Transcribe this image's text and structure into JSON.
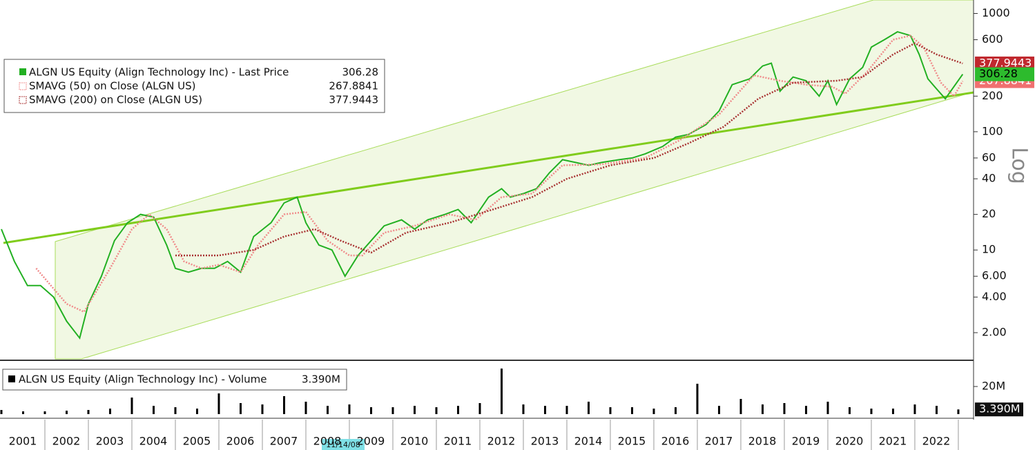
{
  "chart_data": [
    {
      "type": "line",
      "log": true,
      "scale_label": "Log",
      "annotation": "11/14/08",
      "xlim": [
        2001,
        2023.35
      ],
      "xticks": [
        2001,
        2002,
        2003,
        2004,
        2005,
        2006,
        2007,
        2008,
        2009,
        2010,
        2011,
        2012,
        2013,
        2014,
        2015,
        2016,
        2017,
        2018,
        2019,
        2020,
        2021,
        2022
      ],
      "ylim": [
        1.2,
        1300
      ],
      "yticks": [
        1000,
        600,
        200,
        100,
        60,
        40,
        20,
        10,
        {
          "value": 6,
          "label": "6.00"
        },
        {
          "value": 4,
          "label": "4.00"
        },
        {
          "value": 2,
          "label": "2.00"
        }
      ],
      "series": [
        {
          "name": "ALGN US Equity (Align Technology Inc) - Last Price",
          "color": "#22b022",
          "x": [
            2001.0,
            2001.3,
            2001.6,
            2001.9,
            2002.2,
            2002.5,
            2002.8,
            2003.0,
            2003.3,
            2003.6,
            2003.9,
            2004.2,
            2004.5,
            2004.8,
            2005.0,
            2005.3,
            2005.6,
            2005.9,
            2006.2,
            2006.5,
            2006.8,
            2007.2,
            2007.5,
            2007.8,
            2008.0,
            2008.3,
            2008.6,
            2008.9,
            2009.2,
            2009.5,
            2009.8,
            2010.2,
            2010.5,
            2010.8,
            2011.2,
            2011.5,
            2011.8,
            2012.2,
            2012.5,
            2012.7,
            2013.0,
            2013.3,
            2013.6,
            2013.9,
            2014.2,
            2014.5,
            2014.8,
            2015.2,
            2015.5,
            2015.8,
            2016.2,
            2016.5,
            2016.8,
            2017.2,
            2017.5,
            2017.8,
            2018.2,
            2018.5,
            2018.7,
            2018.9,
            2019.2,
            2019.5,
            2019.8,
            2020.0,
            2020.2,
            2020.5,
            2020.8,
            2021.0,
            2021.3,
            2021.6,
            2021.9,
            2022.1,
            2022.3,
            2022.5,
            2022.7,
            2023.1
          ],
          "values": [
            15,
            8,
            5,
            5,
            4,
            2.5,
            1.8,
            3.5,
            6,
            12,
            17,
            20,
            19,
            11,
            7,
            6.5,
            7,
            7,
            8,
            6.5,
            13,
            17,
            25,
            28,
            17,
            11,
            10,
            6,
            9,
            12,
            16,
            18,
            15,
            18,
            20,
            22,
            17,
            28,
            33,
            28,
            30,
            33,
            45,
            58,
            55,
            52,
            55,
            58,
            60,
            65,
            75,
            90,
            95,
            115,
            150,
            250,
            280,
            360,
            380,
            220,
            290,
            270,
            200,
            270,
            170,
            280,
            350,
            520,
            600,
            700,
            650,
            450,
            280,
            230,
            190,
            306.28
          ]
        },
        {
          "name": "SMAVG (50)  on Close (ALGN US)",
          "color": "#f08a8a",
          "x": [
            2001.8,
            2002.5,
            2002.9,
            2003.5,
            2004.0,
            2004.4,
            2004.8,
            2005.2,
            2005.6,
            2006.0,
            2006.5,
            2006.9,
            2007.5,
            2008.0,
            2008.5,
            2009.0,
            2009.3,
            2009.8,
            2010.5,
            2011.3,
            2011.9,
            2012.5,
            2013.2,
            2013.9,
            2014.8,
            2015.8,
            2016.6,
            2017.5,
            2018.3,
            2018.9,
            2019.5,
            2020.1,
            2020.4,
            2020.9,
            2021.5,
            2021.9,
            2022.2,
            2022.6,
            2022.9,
            2023.1
          ],
          "values": [
            7,
            3.5,
            3,
            7,
            15,
            20,
            15,
            8,
            7,
            7.5,
            6.5,
            11,
            20,
            21,
            12,
            9,
            9,
            14,
            16,
            20,
            18,
            28,
            30,
            52,
            53,
            60,
            85,
            140,
            300,
            270,
            250,
            240,
            210,
            320,
            600,
            650,
            520,
            260,
            200,
            267.8841
          ]
        },
        {
          "name": "SMAVG (200)  on Close (ALGN US)",
          "color": "#a83232",
          "x": [
            2005.0,
            2006.0,
            2006.8,
            2007.5,
            2008.2,
            2008.8,
            2009.5,
            2010.3,
            2011.3,
            2012.3,
            2013.2,
            2014.0,
            2015.0,
            2016.0,
            2016.8,
            2017.6,
            2018.4,
            2019.2,
            2020.2,
            2020.8,
            2021.5,
            2022.0,
            2022.5,
            2023.1
          ],
          "values": [
            9,
            9,
            10,
            13,
            15,
            12,
            9.5,
            14,
            17,
            22,
            28,
            40,
            52,
            60,
            80,
            110,
            190,
            260,
            270,
            290,
            450,
            560,
            450,
            377.9443
          ]
        }
      ]
    },
    {
      "type": "bar",
      "ylim": [
        0,
        36000000
      ],
      "yticks": [
        {
          "value": 20000000,
          "label": "20M"
        }
      ],
      "series": [
        {
          "name": "ALGN US Equity (Align Technology Inc) - Volume",
          "color": "#000000",
          "current_label": "3.390M",
          "x": [
            2001.0,
            2001.5,
            2002.0,
            2002.5,
            2003.0,
            2003.5,
            2004.0,
            2004.5,
            2005.0,
            2005.5,
            2006.0,
            2006.5,
            2007.0,
            2007.5,
            2008.0,
            2008.5,
            2009.0,
            2009.5,
            2010.0,
            2010.5,
            2011.0,
            2011.5,
            2012.0,
            2012.5,
            2013.0,
            2013.5,
            2014.0,
            2014.5,
            2015.0,
            2015.5,
            2016.0,
            2016.5,
            2017.0,
            2017.5,
            2018.0,
            2018.5,
            2019.0,
            2019.5,
            2020.0,
            2020.5,
            2021.0,
            2021.5,
            2022.0,
            2022.5,
            2023.0
          ],
          "values": [
            3000000,
            2000000,
            2000000,
            2500000,
            3000000,
            4000000,
            12000000,
            6000000,
            5000000,
            4000000,
            15000000,
            8000000,
            7000000,
            13000000,
            9000000,
            6000000,
            7000000,
            5000000,
            5000000,
            6000000,
            5000000,
            6000000,
            8000000,
            33000000,
            7000000,
            6000000,
            6000000,
            9000000,
            5000000,
            5000000,
            4000000,
            5000000,
            22000000,
            6000000,
            11000000,
            7000000,
            8000000,
            6000000,
            9000000,
            5000000,
            4000000,
            4000000,
            7000000,
            6000000,
            3390000
          ]
        }
      ]
    }
  ]
}
